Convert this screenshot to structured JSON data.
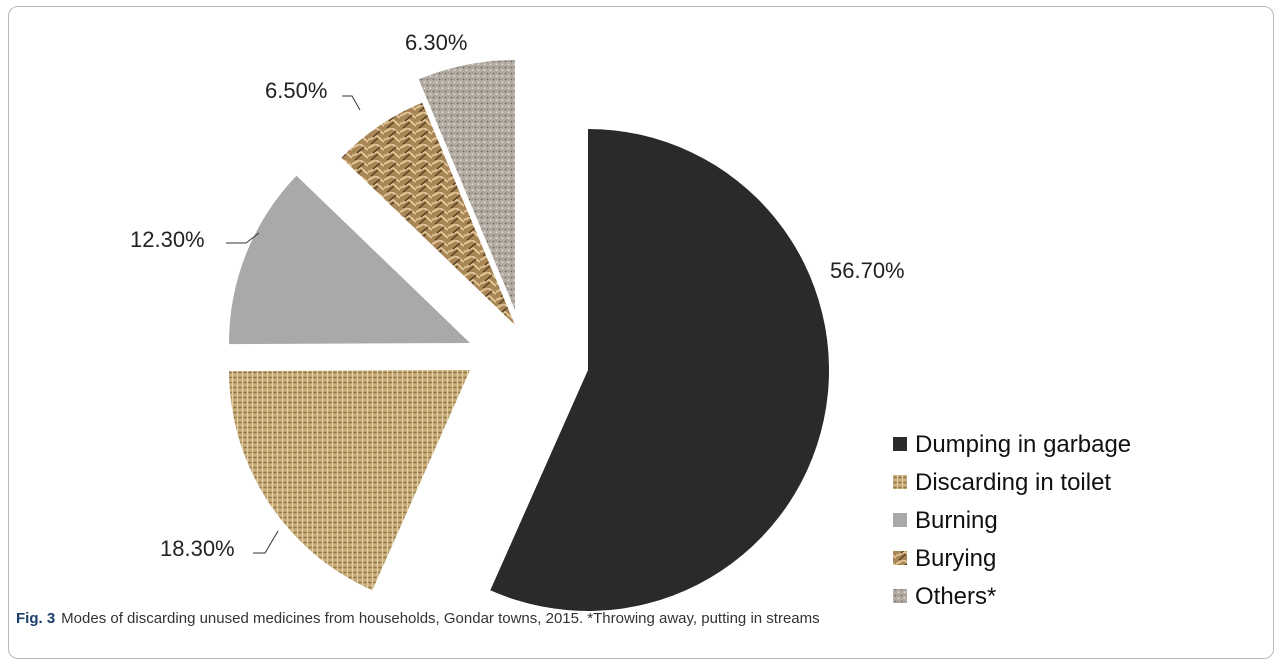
{
  "chart_data": {
    "type": "pie",
    "categories": [
      "Dumping in garbage",
      "Discarding in toilet",
      "Burning",
      "Burying",
      "Others*"
    ],
    "values": [
      56.7,
      18.3,
      12.3,
      6.5,
      6.3
    ],
    "labels": [
      "56.70%",
      "18.30%",
      "12.30%",
      "6.50%",
      "6.30%"
    ],
    "legend_position": "bottom-right",
    "colors": [
      "#2a2a2a",
      "#c9ad78",
      "#a9a9a9",
      "#a88656",
      "#b3aca3"
    ]
  },
  "caption": {
    "figure_label": "Fig. 3",
    "text": "Modes of discarding unused medicines from households, Gondar towns, 2015. *Throwing away, putting in streams"
  }
}
